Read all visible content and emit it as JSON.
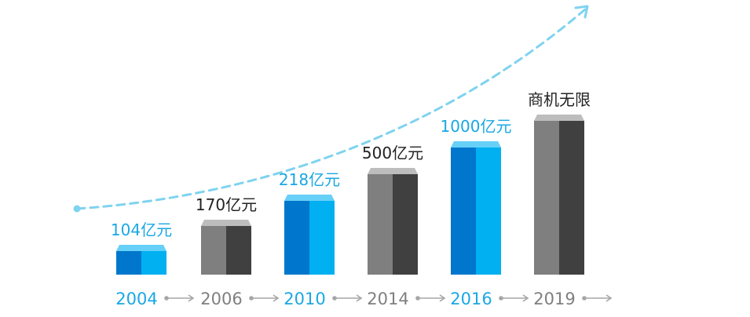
{
  "chart_data": {
    "type": "bar",
    "title": "",
    "xlabel": "",
    "ylabel": "",
    "categories": [
      "2004",
      "2006",
      "2010",
      "2014",
      "2016",
      "2019"
    ],
    "values": [
      104,
      170,
      218,
      500,
      1000,
      null
    ],
    "bar_labels": [
      "104亿元",
      "170亿元",
      "218亿元",
      "500亿元",
      "1000亿元",
      "商机无限"
    ],
    "bar_styles": [
      "blue",
      "gray",
      "blue",
      "gray",
      "blue",
      "gray"
    ],
    "trend_line": {
      "style": "dashed",
      "arrow": true
    },
    "timeline_arrows": true,
    "grid": false,
    "legend": "none"
  },
  "colors": {
    "blue_front": "#0077cc",
    "blue_side": "#00b0f0",
    "blue_top": "#66d0f8",
    "gray_front": "#7f7f7f",
    "gray_side": "#404040",
    "gray_top": "#bdbdbd",
    "blue_text": "#1aa7e4",
    "gray_text": "#7f7f7f",
    "dark_text": "#222222",
    "trend": "#7fd3ef",
    "arrow": "#a6a6a6"
  }
}
